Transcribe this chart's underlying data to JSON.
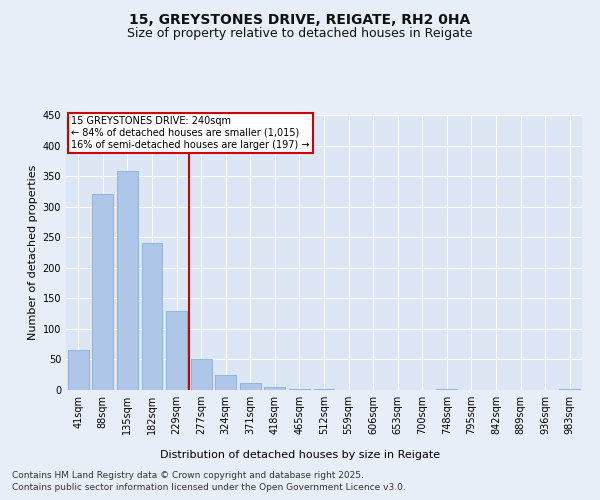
{
  "title_line1": "15, GREYSTONES DRIVE, REIGATE, RH2 0HA",
  "title_line2": "Size of property relative to detached houses in Reigate",
  "xlabel": "Distribution of detached houses by size in Reigate",
  "ylabel": "Number of detached properties",
  "categories": [
    "41sqm",
    "88sqm",
    "135sqm",
    "182sqm",
    "229sqm",
    "277sqm",
    "324sqm",
    "371sqm",
    "418sqm",
    "465sqm",
    "512sqm",
    "559sqm",
    "606sqm",
    "653sqm",
    "700sqm",
    "748sqm",
    "795sqm",
    "842sqm",
    "889sqm",
    "936sqm",
    "983sqm"
  ],
  "values": [
    65,
    320,
    358,
    240,
    130,
    50,
    25,
    12,
    5,
    1,
    1,
    0,
    0,
    0,
    0,
    2,
    0,
    0,
    0,
    0,
    2
  ],
  "bar_color": "#aec6e8",
  "bar_edge_color": "#7aa8cc",
  "vline_color": "#cc0000",
  "annotation_text": "15 GREYSTONES DRIVE: 240sqm\n← 84% of detached houses are smaller (1,015)\n16% of semi-detached houses are larger (197) →",
  "annotation_box_color": "#ffffff",
  "annotation_box_edge_color": "#cc0000",
  "ylim": [
    0,
    450
  ],
  "yticks": [
    0,
    50,
    100,
    150,
    200,
    250,
    300,
    350,
    400,
    450
  ],
  "footer_line1": "Contains HM Land Registry data © Crown copyright and database right 2025.",
  "footer_line2": "Contains public sector information licensed under the Open Government Licence v3.0.",
  "bg_color": "#e8eef7",
  "plot_bg_color": "#dce6f5",
  "grid_color": "#ffffff",
  "title_fontsize": 10,
  "subtitle_fontsize": 9,
  "tick_fontsize": 7,
  "label_fontsize": 8,
  "footer_fontsize": 6.5,
  "annotation_fontsize": 7
}
